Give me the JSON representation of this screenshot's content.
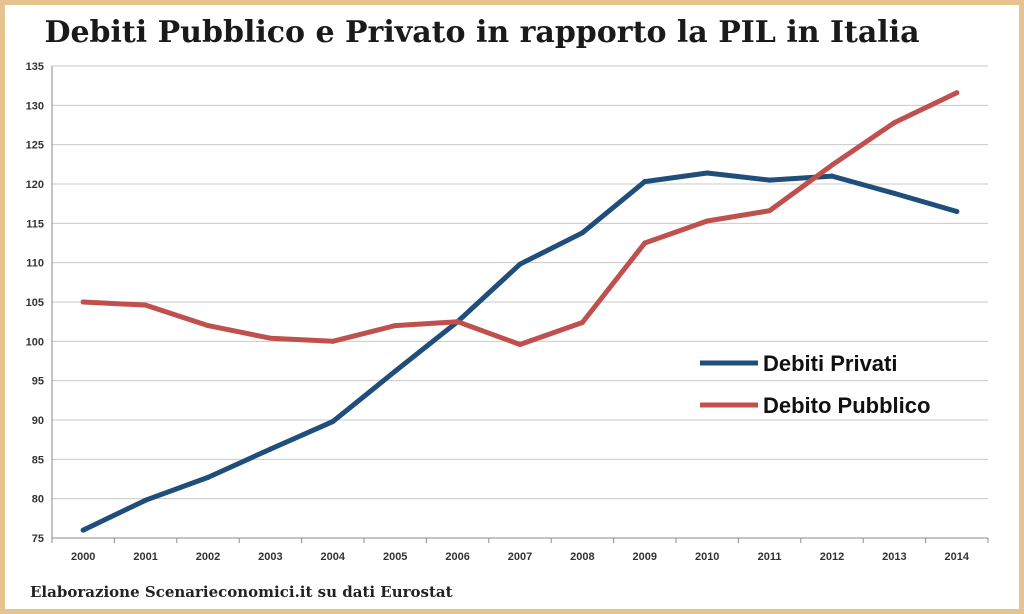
{
  "chart_data": {
    "type": "line",
    "title": "Debiti Pubblico e Privato in rapporto la PIL in Italia",
    "xlabel": "",
    "ylabel": "",
    "categories": [
      "2000",
      "2001",
      "2002",
      "2003",
      "2004",
      "2005",
      "2006",
      "2007",
      "2008",
      "2009",
      "2010",
      "2011",
      "2012",
      "2013",
      "2014"
    ],
    "ylim": [
      75,
      135
    ],
    "yticks": [
      75,
      80,
      85,
      90,
      95,
      100,
      105,
      110,
      115,
      120,
      125,
      130,
      135
    ],
    "grid": true,
    "legend_position": "right",
    "series": [
      {
        "name": "Debiti Privati",
        "color": "#1f4e7a",
        "values": [
          76,
          79.8,
          82.7,
          86.3,
          89.8,
          96.2,
          102.5,
          109.8,
          113.8,
          120.3,
          121.4,
          120.5,
          121,
          118.8,
          116.5
        ]
      },
      {
        "name": "Debito Pubblico",
        "color": "#c0504d",
        "values": [
          105,
          104.6,
          102,
          100.4,
          100,
          102,
          102.5,
          99.6,
          102.4,
          112.5,
          115.3,
          116.6,
          122.4,
          127.8,
          131.6
        ]
      }
    ],
    "caption": "Elaborazione Scenarieconomici.it su dati Eurostat"
  }
}
